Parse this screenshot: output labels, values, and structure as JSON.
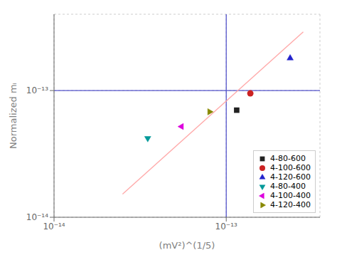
{
  "chart_data": {
    "type": "scatter",
    "x_label": "(mV²)^(1/5)",
    "y_label": "Normalized mᵢ",
    "log": true,
    "xlim": [
      1e-14,
      3.5e-13
    ],
    "ylim": [
      1e-14,
      4e-13
    ],
    "xticks": [
      {
        "value": 1e-14,
        "label": "10⁻¹⁴"
      },
      {
        "value": 1e-13,
        "label": "10⁻¹³"
      }
    ],
    "yticks": [
      {
        "value": 1e-14,
        "label": "10⁻¹⁴"
      },
      {
        "value": 1e-13,
        "label": "10⁻¹³"
      }
    ],
    "grid": true,
    "legend": "lower right",
    "series": [
      {
        "name": "4-80-600",
        "color": "#222222",
        "marker": "square",
        "x": [
          1.15e-13
        ],
        "values": [
          7e-14
        ]
      },
      {
        "name": "4-100-600",
        "color": "#cc2222",
        "marker": "circle",
        "x": [
          1.38e-13
        ],
        "values": [
          9.5e-14
        ]
      },
      {
        "name": "4-120-600",
        "color": "#2222cc",
        "marker": "triangle-up",
        "x": [
          2.35e-13
        ],
        "values": [
          1.8e-13
        ]
      },
      {
        "name": "4-80-400",
        "color": "#009999",
        "marker": "triangle-down",
        "x": [
          3.5e-14
        ],
        "values": [
          4.2e-14
        ]
      },
      {
        "name": "4-100-400",
        "color": "#dd00dd",
        "marker": "triangle-left",
        "x": [
          5.5e-14
        ],
        "values": [
          5.2e-14
        ]
      },
      {
        "name": "4-120-400",
        "color": "#888800",
        "marker": "triangle-right",
        "x": [
          8e-14
        ],
        "values": [
          6.8e-14
        ]
      }
    ],
    "fit_line": {
      "x": [
        2.5e-14,
        2.8e-13
      ],
      "values": [
        1.524e-14,
        2.905e-13
      ],
      "color": "#ffaaaa"
    },
    "reference_lines": {
      "x": 1e-13,
      "y": 1e-13,
      "color": "#5555cc"
    }
  }
}
